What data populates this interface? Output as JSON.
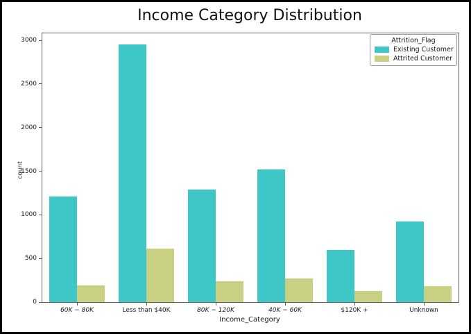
{
  "figure": {
    "border_color": "#000000",
    "background": "#ffffff"
  },
  "chart_data": {
    "type": "bar",
    "title": "Income Category Distribution",
    "xlabel": "Income_Category",
    "ylabel": "count",
    "categories": [
      {
        "label": "60K − 80K",
        "math_italic": true
      },
      {
        "label": "Less than $40K",
        "math_italic": false
      },
      {
        "label": "80K − 120K",
        "math_italic": true
      },
      {
        "label": "40K − 60K",
        "math_italic": true
      },
      {
        "label": "$120K +",
        "math_italic": false
      },
      {
        "label": "Unknown",
        "math_italic": false
      }
    ],
    "series": [
      {
        "name": "Existing Customer",
        "color": "#3fc6c6",
        "values": [
          1213,
          2949,
          1293,
          1519,
          601,
          925
        ]
      },
      {
        "name": "Attrited Customer",
        "color": "#c9d082",
        "values": [
          189,
          612,
          242,
          271,
          126,
          187
        ]
      }
    ],
    "legend_title": "Attrition_Flag",
    "legend_position": "upper right",
    "ylim": [
      0,
      3080
    ],
    "yticks": [
      0,
      500,
      1000,
      1500,
      2000,
      2500,
      3000
    ],
    "grid": false,
    "axis_spine_color": "#5a5a5a"
  }
}
